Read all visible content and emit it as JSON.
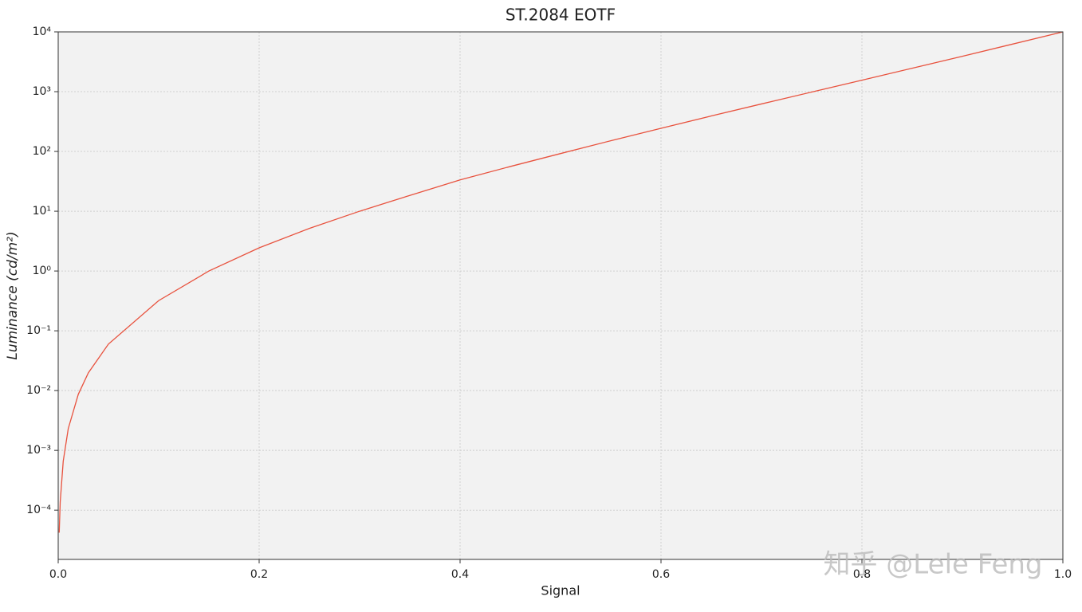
{
  "chart_data": {
    "type": "line",
    "title": "ST.2084 EOTF",
    "x_label": "Signal",
    "y_label": "Luminance (cd/m²)",
    "log_y": true,
    "grid": true,
    "watermark": "知乎 @Lele Feng",
    "x": [
      0.001,
      0.002,
      0.005,
      0.01,
      0.02,
      0.03,
      0.05,
      0.1,
      0.15,
      0.2,
      0.25,
      0.3,
      0.35,
      0.4,
      0.45,
      0.5,
      0.55,
      0.6,
      0.65,
      0.7,
      0.75,
      0.8,
      0.85,
      0.9,
      0.95,
      1.0
    ],
    "series": [
      {
        "name": "ST.2084 EOTF",
        "color": "#e8523e",
        "values": [
          4.2e-05,
          0.000137,
          0.00066,
          0.00231,
          0.00867,
          0.0198,
          0.06,
          0.32,
          1.0,
          2.44,
          5.16,
          10.0,
          18.4,
          33.4,
          56,
          92.2,
          151,
          244,
          392,
          623,
          985,
          1555,
          2466,
          3906,
          6250,
          10000
        ]
      }
    ],
    "xlim": [
      0,
      1
    ],
    "xticks": [
      {
        "value": 0,
        "label": "0.0"
      },
      0.2,
      0.4,
      0.6,
      0.8,
      {
        "value": 1,
        "label": "1.0"
      }
    ],
    "ylim": [
      1.5e-05,
      10000
    ],
    "yticks": [
      {
        "value": 0.0001,
        "label": "10⁻⁴"
      },
      {
        "value": 0.001,
        "label": "10⁻³"
      },
      {
        "value": 0.01,
        "label": "10⁻²"
      },
      {
        "value": 0.1,
        "label": "10⁻¹"
      },
      {
        "value": 1,
        "label": "10⁰"
      },
      {
        "value": 10,
        "label": "10¹"
      },
      {
        "value": 100,
        "label": "10²"
      },
      {
        "value": 1000,
        "label": "10³"
      },
      {
        "value": 10000,
        "label": "10⁴"
      }
    ]
  }
}
